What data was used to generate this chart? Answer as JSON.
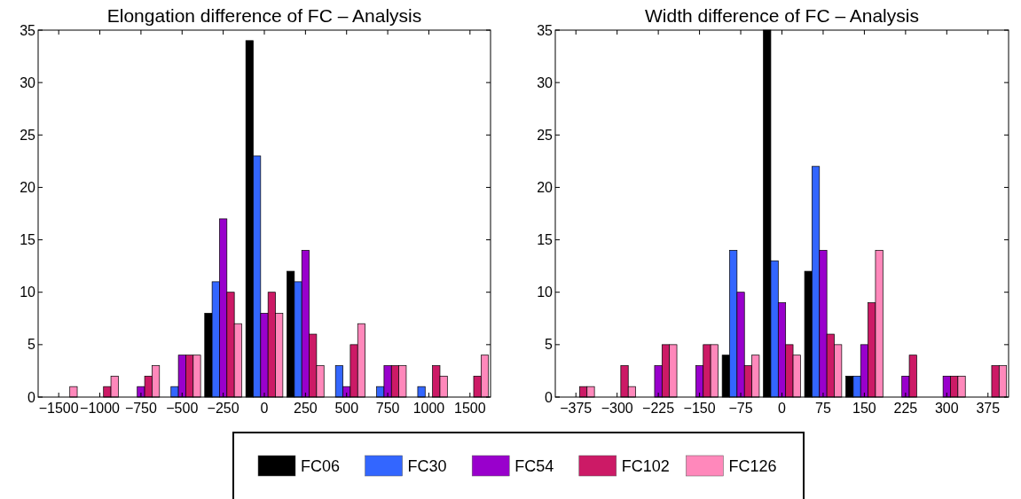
{
  "chart_data": [
    {
      "type": "bar",
      "title": "Elongation difference of FC – Analysis",
      "categories": [
        "−1500",
        "−1000",
        "−750",
        "−500",
        "−250",
        "0",
        "250",
        "500",
        "750",
        "1000",
        "1500"
      ],
      "series": [
        {
          "name": "FC06",
          "color": "#000000",
          "values": [
            0,
            0,
            0,
            0,
            8,
            34,
            12,
            0,
            0,
            0,
            0
          ]
        },
        {
          "name": "FC30",
          "color": "#3366ff",
          "values": [
            0,
            0,
            0,
            1,
            11,
            23,
            11,
            3,
            1,
            1,
            0
          ]
        },
        {
          "name": "FC54",
          "color": "#9900cc",
          "values": [
            0,
            0,
            1,
            4,
            17,
            8,
            14,
            1,
            3,
            0,
            0
          ]
        },
        {
          "name": "FC102",
          "color": "#cc1a66",
          "values": [
            0,
            1,
            2,
            4,
            10,
            10,
            6,
            5,
            3,
            3,
            2
          ]
        },
        {
          "name": "FC126",
          "color": "#ff88bb",
          "values": [
            1,
            2,
            3,
            4,
            7,
            8,
            3,
            7,
            3,
            2,
            4
          ]
        }
      ],
      "ylim": [
        0,
        35
      ],
      "yticks": [
        0,
        5,
        10,
        15,
        20,
        25,
        30,
        35
      ],
      "grid": false,
      "legend": "bottom"
    },
    {
      "type": "bar",
      "title": "Width difference of FC – Analysis",
      "categories": [
        "−375",
        "−300",
        "−225",
        "−150",
        "−75",
        "0",
        "75",
        "150",
        "225",
        "300",
        "375"
      ],
      "series": [
        {
          "color": "#000000",
          "values": [
            0,
            0,
            0,
            0,
            4,
            35,
            12,
            2,
            0,
            0,
            0
          ]
        },
        {
          "color": "#3366ff",
          "values": [
            0,
            0,
            0,
            0,
            14,
            13,
            22,
            2,
            0,
            0,
            0
          ]
        },
        {
          "color": "#9900cc",
          "values": [
            0,
            0,
            3,
            3,
            10,
            9,
            14,
            5,
            2,
            2,
            0
          ]
        },
        {
          "color": "#cc1a66",
          "values": [
            1,
            3,
            5,
            5,
            3,
            5,
            6,
            9,
            4,
            2,
            3
          ]
        },
        {
          "color": "#ff88bb",
          "values": [
            1,
            1,
            5,
            5,
            4,
            4,
            5,
            14,
            0,
            2,
            3
          ]
        }
      ],
      "ylim": [
        0,
        35
      ],
      "yticks": [
        0,
        5,
        10,
        15,
        20,
        25,
        30,
        35
      ],
      "grid": false
    }
  ]
}
